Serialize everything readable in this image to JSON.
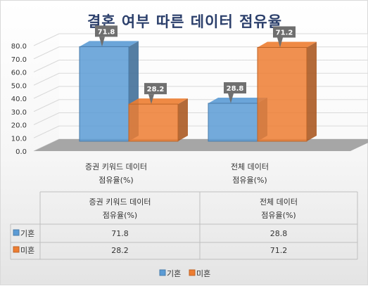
{
  "chart_data": {
    "type": "bar",
    "title": "결혼 여부 따른 데이터 점유율",
    "categories": [
      [
        "증권 키워드 데이터",
        "점유율(%)"
      ],
      [
        "전체 데이터",
        "점유율(%)"
      ]
    ],
    "series": [
      {
        "name": "기혼",
        "values": [
          71.8,
          28.8
        ],
        "color": "#5b9bd5"
      },
      {
        "name": "미혼",
        "values": [
          28.2,
          71.2
        ],
        "color": "#ed7d31"
      }
    ],
    "ylim": [
      0,
      80
    ],
    "yticks": [
      "0.0",
      "10.0",
      "20.0",
      "30.0",
      "40.0",
      "50.0",
      "60.0",
      "70.0",
      "80.0"
    ],
    "grid": true,
    "legend": "bottom",
    "data_table": true
  }
}
